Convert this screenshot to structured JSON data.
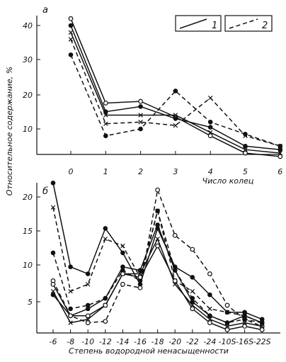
{
  "chart_data": [
    {
      "type": "line",
      "panel": "а",
      "xlabel": "Число колец",
      "ylabel": "Относительное содержание, %",
      "x": [
        0,
        1,
        2,
        3,
        4,
        5,
        6
      ],
      "xticks": [
        "0",
        "1",
        "2",
        "3",
        "4",
        "5",
        "6"
      ],
      "yticks": [
        "10",
        "20",
        "30",
        "40"
      ],
      "ylim": [
        0,
        42
      ],
      "legend": {
        "placement": "top-right",
        "items": [
          "1",
          "2"
        ]
      },
      "series": [
        {
          "style": "solid",
          "marker": "open-circle",
          "values": [
            42,
            17.5,
            18,
            13.5,
            8,
            3,
            2
          ]
        },
        {
          "style": "solid",
          "marker": "filled-circle",
          "values": [
            40,
            15,
            16.5,
            13,
            10.5,
            5,
            4
          ]
        },
        {
          "style": "solid",
          "marker": "cross",
          "values": [
            38,
            14,
            14,
            14,
            9,
            4,
            3
          ]
        },
        {
          "style": "dashed",
          "marker": "cross",
          "values": [
            36,
            11.5,
            12,
            11,
            19,
            8,
            5
          ]
        },
        {
          "style": "dashed",
          "marker": "filled-circle",
          "values": [
            31.5,
            8,
            10,
            21,
            12,
            8.5,
            5
          ]
        }
      ]
    },
    {
      "type": "line",
      "panel": "б",
      "xlabel": "Степень водородной ненасыщенности",
      "x": [
        -6,
        -8,
        -10,
        -12,
        -14,
        -16,
        -18,
        -20,
        -22,
        -24,
        -26,
        -28,
        -30
      ],
      "xticks": [
        "-6",
        "-8",
        "-10",
        "-12",
        "-14",
        "-16",
        "-18",
        "-20",
        "-22",
        "-24",
        "-10S",
        "-16S",
        "-22S"
      ],
      "yticks": [
        "5",
        "10",
        "15",
        "20"
      ],
      "ylim": [
        0,
        23
      ],
      "series": [
        {
          "style": "solid",
          "marker": "filled-circle",
          "values": [
            22,
            10,
            9,
            15.5,
            12,
            7.5,
            15.5,
            10,
            8.5,
            6,
            3.5,
            3.5,
            2.5
          ]
        },
        {
          "style": "dashed",
          "marker": "cross",
          "values": [
            18.5,
            6.5,
            7.5,
            14,
            13,
            8.5,
            18,
            8,
            6.5,
            4,
            3.5,
            3,
            2
          ]
        },
        {
          "style": "dashed",
          "marker": "open-circle",
          "values": [
            8,
            3,
            2,
            2.2,
            7.5,
            7,
            21,
            14.5,
            12.5,
            9,
            4.5,
            2.5,
            1.5
          ]
        },
        {
          "style": "dashed",
          "marker": "filled-circle",
          "values": [
            12,
            4,
            4.5,
            5.5,
            9.5,
            8,
            18,
            9.5,
            5.5,
            3,
            2,
            2.5,
            2
          ]
        },
        {
          "style": "solid",
          "marker": "filled-circle",
          "values": [
            6,
            3,
            4,
            5.5,
            10,
            9.5,
            16,
            9.5,
            5,
            3,
            2,
            3,
            2
          ]
        },
        {
          "style": "solid",
          "marker": "cross",
          "values": [
            6.5,
            2,
            2.5,
            4.5,
            9,
            9,
            14,
            7.5,
            4.5,
            2.5,
            1.5,
            2,
            1.5
          ]
        },
        {
          "style": "solid",
          "marker": "open-circle",
          "values": [
            7.5,
            3,
            3,
            4.5,
            9,
            8.5,
            13,
            8,
            4,
            2,
            1,
            1.5,
            1
          ]
        }
      ]
    }
  ]
}
